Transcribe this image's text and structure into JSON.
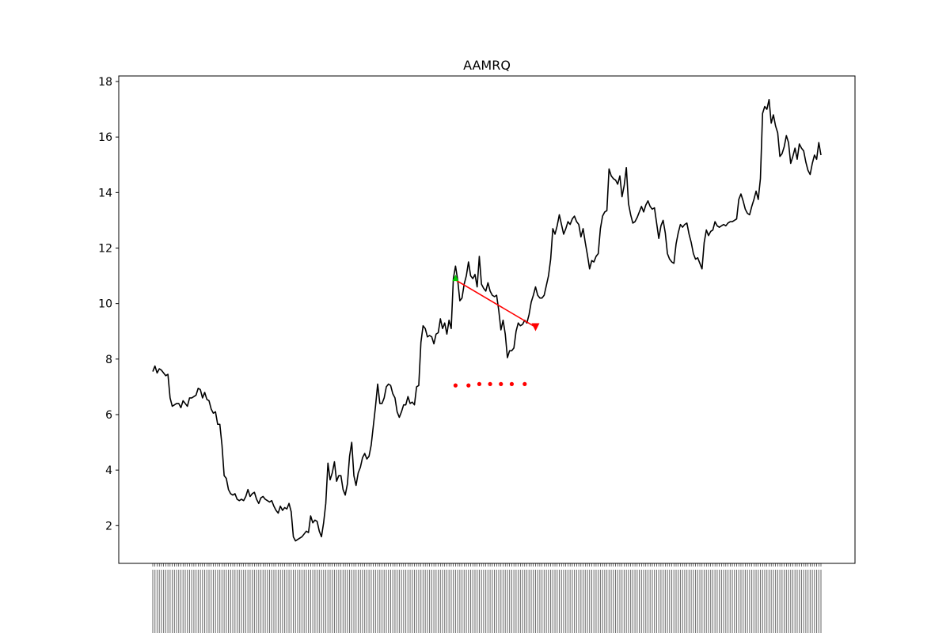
{
  "chart_data": {
    "type": "line",
    "title": "AAMRQ",
    "xlabel": "",
    "ylabel": "",
    "ylim": [
      0.64,
      18.2
    ],
    "y_ticks": [
      2,
      4,
      6,
      8,
      10,
      12,
      14,
      16,
      18
    ],
    "grid": false,
    "legend": "none",
    "x_tick_labels": "dense date labels (unreadable)",
    "series": [
      {
        "color": "#000000",
        "values": [
          7.55,
          7.75,
          7.5,
          7.65,
          7.6,
          7.5,
          7.4,
          7.45,
          6.6,
          6.3,
          6.35,
          6.4,
          6.4,
          6.25,
          6.5,
          6.4,
          6.3,
          6.6,
          6.6,
          6.65,
          6.7,
          6.95,
          6.9,
          6.6,
          6.8,
          6.55,
          6.5,
          6.2,
          6.05,
          6.1,
          5.65,
          5.65,
          4.9,
          3.8,
          3.7,
          3.3,
          3.15,
          3.1,
          3.15,
          2.95,
          2.9,
          2.95,
          2.9,
          3.05,
          3.3,
          3.05,
          3.15,
          3.2,
          2.95,
          2.8,
          3.0,
          3.05,
          2.95,
          2.9,
          2.85,
          2.9,
          2.7,
          2.55,
          2.45,
          2.7,
          2.55,
          2.65,
          2.6,
          2.8,
          2.5,
          1.6,
          1.45,
          1.5,
          1.55,
          1.6,
          1.7,
          1.8,
          1.75,
          2.35,
          2.1,
          2.2,
          2.15,
          1.8,
          1.6,
          2.1,
          2.8,
          4.25,
          3.65,
          3.9,
          4.3,
          3.6,
          3.8,
          3.8,
          3.3,
          3.1,
          3.5,
          4.5,
          5.0,
          3.8,
          3.45,
          3.9,
          4.1,
          4.45,
          4.6,
          4.4,
          4.5,
          4.9,
          5.6,
          6.3,
          7.1,
          6.4,
          6.4,
          6.6,
          7.0,
          7.1,
          7.05,
          6.75,
          6.6,
          6.1,
          5.9,
          6.1,
          6.35,
          6.35,
          6.65,
          6.4,
          6.45,
          6.35,
          7.0,
          7.05,
          8.6,
          9.2,
          9.1,
          8.8,
          8.85,
          8.8,
          8.55,
          8.9,
          8.95,
          9.45,
          9.1,
          9.3,
          8.9,
          9.4,
          9.1,
          10.9,
          11.35,
          10.85,
          10.1,
          10.2,
          10.7,
          11.0,
          11.5,
          11.0,
          10.9,
          11.05,
          10.6,
          11.7,
          10.7,
          10.55,
          10.45,
          10.75,
          10.45,
          10.3,
          10.25,
          10.3,
          9.75,
          9.05,
          9.4,
          8.9,
          8.05,
          8.3,
          8.3,
          8.4,
          9.0,
          9.3,
          9.2,
          9.25,
          9.4,
          9.3,
          9.6,
          10.05,
          10.3,
          10.6,
          10.3,
          10.2,
          10.2,
          10.3,
          10.65,
          11.0,
          11.6,
          12.7,
          12.5,
          12.8,
          13.2,
          12.85,
          12.5,
          12.7,
          12.95,
          12.85,
          13.05,
          13.15,
          12.95,
          12.85,
          12.4,
          12.7,
          12.2,
          11.75,
          11.25,
          11.55,
          11.5,
          11.7,
          11.8,
          12.7,
          13.15,
          13.3,
          13.35,
          14.85,
          14.6,
          14.5,
          14.45,
          14.3,
          14.6,
          13.85,
          14.25,
          14.9,
          13.6,
          13.2,
          12.9,
          12.95,
          13.1,
          13.3,
          13.5,
          13.3,
          13.55,
          13.7,
          13.5,
          13.4,
          13.45,
          12.9,
          12.35,
          12.8,
          13.0,
          12.55,
          11.8,
          11.6,
          11.5,
          11.45,
          12.15,
          12.55,
          12.85,
          12.75,
          12.85,
          12.9,
          12.5,
          12.2,
          11.8,
          11.6,
          11.65,
          11.45,
          11.25,
          12.2,
          12.65,
          12.45,
          12.6,
          12.65,
          12.95,
          12.8,
          12.75,
          12.8,
          12.85,
          12.8,
          12.9,
          12.95,
          12.95,
          13.0,
          13.05,
          13.75,
          13.95,
          13.7,
          13.4,
          13.25,
          13.2,
          13.5,
          13.75,
          14.05,
          13.75,
          14.5,
          16.85,
          17.1,
          17.0,
          17.35,
          16.5,
          16.8,
          16.4,
          16.15,
          15.3,
          15.4,
          15.65,
          16.05,
          15.8,
          15.05,
          15.3,
          15.6,
          15.2,
          15.75,
          15.6,
          15.5,
          15.1,
          14.8,
          14.65,
          15.05,
          15.35,
          15.2,
          15.8,
          15.35
        ]
      }
    ],
    "annotations": {
      "trend_arrow": {
        "color": "#ff0000",
        "start_index": 140,
        "start_value": 10.85,
        "end_index": 177,
        "end_value": 9.15
      },
      "start_marker": {
        "color": "#00cc00",
        "shape": "triangle-up",
        "index": 140,
        "value": 10.9
      },
      "end_marker": {
        "color": "#ff0000",
        "shape": "triangle-down",
        "index": 177,
        "value": 9.15
      },
      "dotted_points": {
        "color": "#ff0000",
        "points": [
          {
            "index": 140,
            "value": 7.05
          },
          {
            "index": 146,
            "value": 7.05
          },
          {
            "index": 151,
            "value": 7.1
          },
          {
            "index": 156,
            "value": 7.1
          },
          {
            "index": 161,
            "value": 7.1
          },
          {
            "index": 166,
            "value": 7.1
          },
          {
            "index": 172,
            "value": 7.1
          }
        ]
      }
    }
  }
}
